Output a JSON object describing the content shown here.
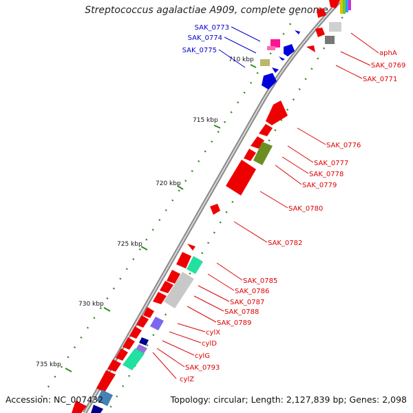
{
  "header": {
    "title": "Streptococcus agalactiae A909, complete genome"
  },
  "footer": {
    "accession": "Accession: NC_007432",
    "stats": "Topology: circular; Length: 2,127,839 bp; Genes: 2,098"
  },
  "colors": {
    "backbone": "#8a8a8a",
    "tick": "#2e8b1e",
    "label_forward": "#0000cc",
    "label_reverse": "#dd0000",
    "gene_red": "#ee0000",
    "gene_blue": "#0000dd",
    "gene_olive": "#6b8e23",
    "gene_teal": "#22e0a0",
    "gene_purple": "#7b68ee",
    "gene_grey": "#c8c8c8"
  },
  "kbp_ticks": [
    "710 kbp",
    "715 kbp",
    "720 kbp",
    "725 kbp",
    "730 kbp",
    "735 kbp"
  ],
  "labels_forward": [
    "SAK_0773",
    "SAK_0774",
    "SAK_0775"
  ],
  "labels_reverse": [
    "aphA",
    "SAK_0769",
    "SAK_0771",
    "SAK_0776",
    "SAK_0777",
    "SAK_0778",
    "SAK_0779",
    "SAK_0780",
    "SAK_0782",
    "SAK_0785",
    "SAK_0786",
    "SAK_0787",
    "SAK_0788",
    "SAK_0789",
    "cylX",
    "cylD",
    "cylG",
    "SAK_0793",
    "cylZ"
  ]
}
